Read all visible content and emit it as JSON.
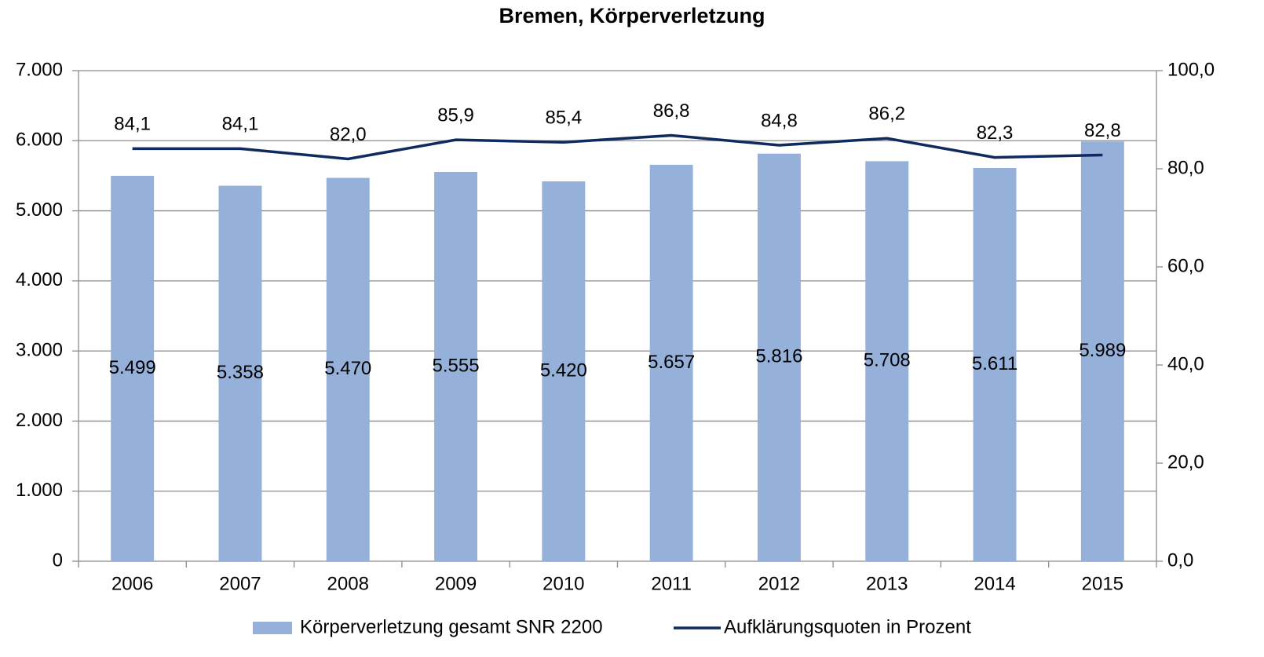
{
  "chart_data": {
    "type": "bar",
    "title": "Bremen, Körperverletzung",
    "categories": [
      "2006",
      "2007",
      "2008",
      "2009",
      "2010",
      "2011",
      "2012",
      "2013",
      "2014",
      "2015"
    ],
    "series": [
      {
        "name": "Körperverletzung gesamt SNR 2200",
        "type": "bar",
        "color": "#95b0d9",
        "values": [
          5499,
          5358,
          5470,
          5555,
          5420,
          5657,
          5816,
          5708,
          5611,
          5989
        ],
        "value_labels": [
          "5.499",
          "5.358",
          "5.470",
          "5.555",
          "5.420",
          "5.657",
          "5.816",
          "5.708",
          "5.611",
          "5.989"
        ]
      },
      {
        "name": "Aufklärungsquoten in Prozent",
        "type": "line",
        "axis": "y2",
        "color": "#0f2a5f",
        "values": [
          84.1,
          84.1,
          82.0,
          85.9,
          85.4,
          86.8,
          84.8,
          86.2,
          82.3,
          82.8
        ],
        "value_labels": [
          "84,1",
          "84,1",
          "82,0",
          "85,9",
          "85,4",
          "86,8",
          "84,8",
          "86,2",
          "82,3",
          "82,8"
        ]
      }
    ],
    "ylim": [
      0,
      7000
    ],
    "yticks": [
      0,
      {
        "value": 1000,
        "label": "1.000"
      },
      {
        "value": 2000,
        "label": "2.000"
      },
      {
        "value": 3000,
        "label": "3.000"
      },
      {
        "value": 4000,
        "label": "4.000"
      },
      {
        "value": 5000,
        "label": "5.000"
      },
      {
        "value": 6000,
        "label": "6.000"
      },
      {
        "value": 7000,
        "label": "7.000"
      }
    ],
    "y2lim": [
      0,
      100
    ],
    "y2ticks": [
      {
        "value": 0,
        "label": "0,0"
      },
      {
        "value": 20,
        "label": "20,0"
      },
      {
        "value": 40,
        "label": "40,0"
      },
      {
        "value": 60,
        "label": "60,0"
      },
      {
        "value": 80,
        "label": "80,0"
      },
      {
        "value": 100,
        "label": "100,0"
      }
    ],
    "grid": true,
    "legend": "bottom"
  }
}
